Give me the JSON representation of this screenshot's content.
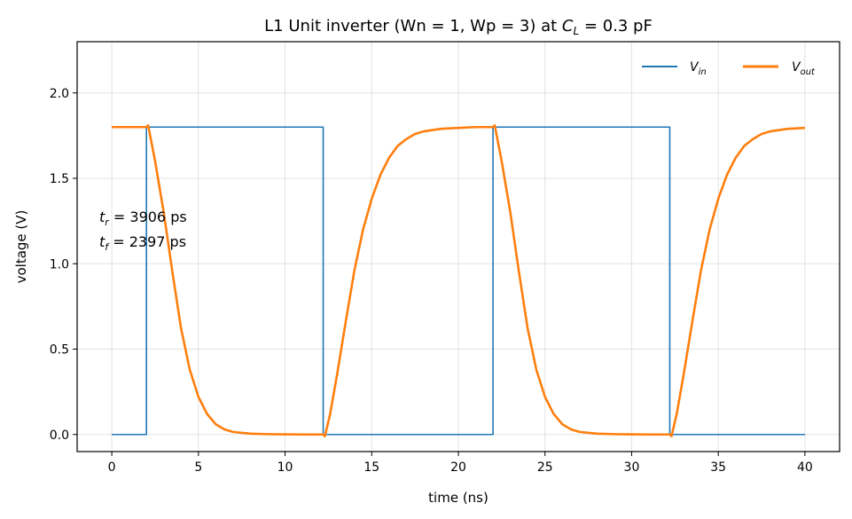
{
  "chart_data": {
    "type": "line",
    "title": {
      "prefix": "L1  Unit inverter (Wn = 1, Wp = 3) at ",
      "var": "C",
      "var_sub": "L",
      "suffix": " = 0.3 pF"
    },
    "xlabel": "time (ns)",
    "ylabel": "voltage (V)",
    "xlim": [
      -2,
      42
    ],
    "ylim": [
      -0.1,
      2.3
    ],
    "xticks": [
      0,
      5,
      10,
      15,
      20,
      25,
      30,
      35,
      40
    ],
    "yticks": [
      0.0,
      0.5,
      1.0,
      1.5,
      2.0
    ],
    "xtick_labels": [
      "0",
      "5",
      "10",
      "15",
      "20",
      "25",
      "30",
      "35",
      "40"
    ],
    "ytick_labels": [
      "0.0",
      "0.5",
      "1.0",
      "1.5",
      "2.0"
    ],
    "grid": true,
    "legend": {
      "placement": "top-right",
      "entries": [
        {
          "main": "V",
          "sub": "in",
          "color": "#1f77b4"
        },
        {
          "main": "V",
          "sub": "out",
          "color": "#ff7f0e"
        }
      ]
    },
    "annotations": [
      {
        "main": "t",
        "sub": "r",
        "text": " = 3906 ps"
      },
      {
        "main": "t",
        "sub": "f",
        "text": " = 2397 ps"
      }
    ],
    "series": [
      {
        "name": "Vin",
        "color": "#1f77b4",
        "x": [
          0,
          2,
          2,
          12.2,
          12.2,
          22,
          22,
          32.2,
          32.2,
          40
        ],
        "y": [
          0,
          0,
          1.8,
          1.8,
          0,
          0,
          1.8,
          1.8,
          0,
          0
        ]
      },
      {
        "name": "Vout",
        "color": "#ff7f0e",
        "x": [
          0,
          1,
          2,
          2.1,
          2.5,
          3.0,
          3.5,
          4.0,
          4.5,
          5.0,
          5.5,
          6.0,
          6.5,
          7.0,
          8.0,
          9.0,
          10.0,
          11.0,
          12.2,
          12.3,
          12.6,
          13.0,
          13.5,
          14.0,
          14.5,
          15.0,
          15.5,
          16.0,
          16.5,
          17.0,
          17.5,
          18.0,
          19.0,
          20.0,
          21.0,
          22.0,
          22.1,
          22.5,
          23.0,
          23.5,
          24.0,
          24.5,
          25.0,
          25.5,
          26.0,
          26.5,
          27.0,
          28.0,
          29.0,
          30.0,
          31.0,
          32.2,
          32.3,
          32.6,
          33.0,
          33.5,
          34.0,
          34.5,
          35.0,
          35.5,
          36.0,
          36.5,
          37.0,
          37.5,
          38.0,
          39.0,
          40.0
        ],
        "y": [
          1.8,
          1.8,
          1.8,
          1.81,
          1.6,
          1.3,
          0.95,
          0.62,
          0.38,
          0.22,
          0.12,
          0.06,
          0.03,
          0.015,
          0.005,
          0.002,
          0.001,
          0.0,
          0.0,
          -0.01,
          0.12,
          0.35,
          0.66,
          0.96,
          1.2,
          1.38,
          1.52,
          1.62,
          1.69,
          1.73,
          1.76,
          1.775,
          1.79,
          1.795,
          1.8,
          1.8,
          1.81,
          1.6,
          1.3,
          0.95,
          0.62,
          0.38,
          0.22,
          0.12,
          0.06,
          0.03,
          0.015,
          0.005,
          0.002,
          0.001,
          0.0,
          0.0,
          -0.01,
          0.12,
          0.35,
          0.66,
          0.96,
          1.2,
          1.38,
          1.52,
          1.62,
          1.69,
          1.73,
          1.76,
          1.775,
          1.79,
          1.795
        ]
      }
    ]
  }
}
